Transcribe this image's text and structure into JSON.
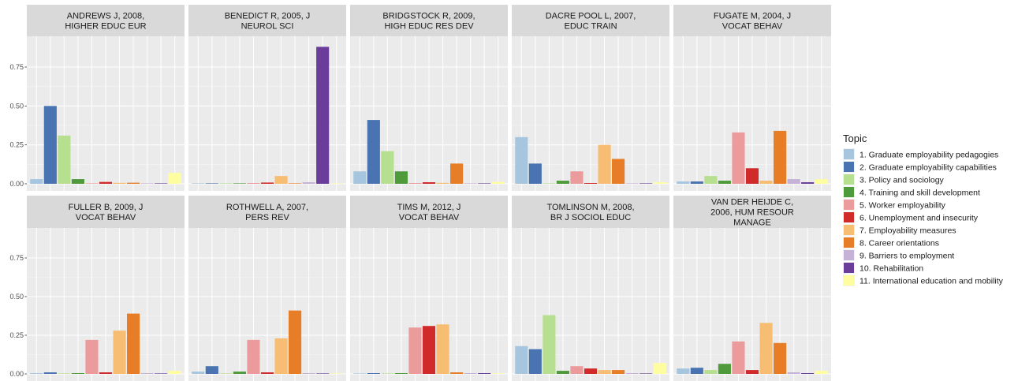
{
  "chart_data": {
    "type": "bar",
    "layout": "facet-grid",
    "y_ticks": [
      "0.00",
      "0.25",
      "0.50",
      "0.75"
    ],
    "y_tick_values": [
      0,
      0.25,
      0.5,
      0.75
    ],
    "ylim": [
      0,
      0.9
    ],
    "grid": true,
    "legend": {
      "title": "Topic",
      "placement": "right"
    },
    "topics": [
      {
        "name": "1. Graduate employability pedagogies",
        "color": "#a6c6e0"
      },
      {
        "name": "2. Graduate employability capabilities",
        "color": "#4a74b1"
      },
      {
        "name": "3. Policy and sociology",
        "color": "#b6df8f"
      },
      {
        "name": "4. Training and skill development",
        "color": "#4f9a3b"
      },
      {
        "name": "5. Worker employability",
        "color": "#ec9b9d"
      },
      {
        "name": "6. Unemployment and insecurity",
        "color": "#d12a2b"
      },
      {
        "name": "7. Employability measures",
        "color": "#f7bd72"
      },
      {
        "name": "8. Career orientations",
        "color": "#e77d27"
      },
      {
        "name": "9. Barriers to employment",
        "color": "#c5b2d6"
      },
      {
        "name": "10. Rehabilitation",
        "color": "#6a3d9a"
      },
      {
        "name": "11. International education and mobility",
        "color": "#fefea0"
      }
    ],
    "facets": [
      {
        "title": [
          "ANDREWS J, 2008,",
          "HIGHER EDUC EUR"
        ],
        "values": [
          0.03,
          0.5,
          0.31,
          0.03,
          0.003,
          0.012,
          0.006,
          0.007,
          0.002,
          0.001,
          0.07
        ]
      },
      {
        "title": [
          "BENEDICT R, 2005, J",
          "NEUROL SCI"
        ],
        "values": [
          0.002,
          0.002,
          0.002,
          0.002,
          0.005,
          0.008,
          0.05,
          0.003,
          0.01,
          0.88,
          0.002
        ]
      },
      {
        "title": [
          "BRIDGSTOCK R, 2009,",
          "HIGH EDUC RES DEV"
        ],
        "values": [
          0.08,
          0.41,
          0.21,
          0.08,
          0.005,
          0.01,
          0.006,
          0.13,
          0.002,
          0.001,
          0.012
        ]
      },
      {
        "title": [
          "DACRE POOL L, 2007,",
          "EDUC TRAIN"
        ],
        "values": [
          0.3,
          0.13,
          0.002,
          0.02,
          0.08,
          0.005,
          0.25,
          0.16,
          0.002,
          0.002,
          0.01
        ]
      },
      {
        "title": [
          "FUGATE M, 2004, J",
          "VOCAT BEHAV"
        ],
        "values": [
          0.015,
          0.015,
          0.05,
          0.02,
          0.33,
          0.1,
          0.02,
          0.34,
          0.03,
          0.01,
          0.03
        ]
      },
      {
        "title": [
          "FULLER B, 2009, J",
          "VOCAT BEHAV"
        ],
        "values": [
          0.005,
          0.01,
          0.003,
          0.005,
          0.22,
          0.01,
          0.28,
          0.39,
          0.005,
          0.003,
          0.02
        ]
      },
      {
        "title": [
          "ROTHWELL A, 2007,",
          "PERS REV"
        ],
        "values": [
          0.015,
          0.05,
          0.002,
          0.015,
          0.22,
          0.01,
          0.23,
          0.41,
          0.005,
          0.003,
          0.003
        ]
      },
      {
        "title": [
          "TIMS M, 2012, J",
          "VOCAT BEHAV"
        ],
        "values": [
          0.002,
          0.005,
          0.002,
          0.005,
          0.3,
          0.31,
          0.32,
          0.01,
          0.005,
          0.005,
          0.002
        ]
      },
      {
        "title": [
          "TOMLINSON M, 2008,",
          "BR J SOCIOL EDUC"
        ],
        "values": [
          0.18,
          0.16,
          0.38,
          0.02,
          0.05,
          0.035,
          0.025,
          0.025,
          0.005,
          0.002,
          0.07
        ]
      },
      {
        "title": [
          "VAN DER HEIJDE C,",
          "2006, HUM RESOUR",
          "MANAGE"
        ],
        "values": [
          0.035,
          0.04,
          0.025,
          0.065,
          0.21,
          0.025,
          0.33,
          0.2,
          0.01,
          0.005,
          0.02
        ]
      }
    ]
  }
}
